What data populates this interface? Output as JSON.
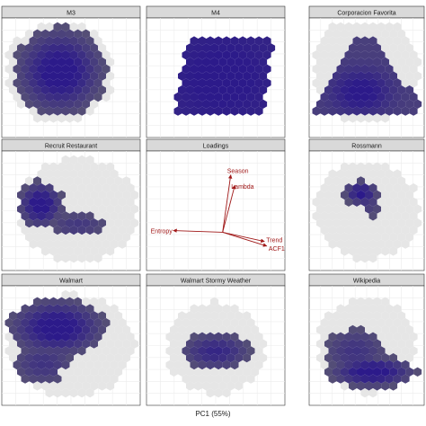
{
  "chart_data": {
    "type": "heatmap",
    "subtype": "faceted hexbin density of time-series features in a 2-D principal component space",
    "xlabel": "PC1 (55%)",
    "ylabel": "",
    "grid": true,
    "colors": {
      "background_cells": "#e6e6e6",
      "low_density": "#6b6b6b",
      "high_density": "#2c1a8a",
      "arrow": "#a01818",
      "strip": "#d9d9d9"
    },
    "panels": [
      {
        "name": "M3",
        "density_shape": "roughly round cloud in upper-left/centre region",
        "peak_area": "centre"
      },
      {
        "name": "M4",
        "density_shape": "broad slanted block covering most of the plotted space",
        "peak_area": "centre"
      },
      {
        "name": "Corporacion Favorita",
        "density_shape": "triangle widening toward the bottom",
        "peak_area": "lower-left"
      },
      {
        "name": "Recruit Restaurant",
        "density_shape": "small cluster on the left with a tail to the right",
        "peak_area": "left"
      },
      {
        "name": "Loadings",
        "is_loadings": true,
        "vectors": [
          {
            "label": "Season",
            "x": 0.14,
            "y": 1.0
          },
          {
            "label": "Lambda",
            "x": 0.21,
            "y": 0.82
          },
          {
            "label": "Entropy",
            "x": -0.85,
            "y": 0.03
          },
          {
            "label": "Trend",
            "x": 0.72,
            "y": -0.16
          },
          {
            "label": "ACF1",
            "x": 0.76,
            "y": -0.24
          }
        ]
      },
      {
        "name": "Rossmann",
        "density_shape": "small compact cluster in the upper centre",
        "peak_area": "upper-centre"
      },
      {
        "name": "Walmart",
        "density_shape": "large cloud covering the upper and left areas, gap at the bottom centre",
        "peak_area": "upper-left"
      },
      {
        "name": "Walmart Stormy Weather",
        "density_shape": "scattered band across the centre, few cells",
        "peak_area": "centre"
      },
      {
        "name": "Wikipedia",
        "density_shape": "wide band concentrated at the bottom",
        "peak_area": "bottom-centre"
      }
    ]
  }
}
